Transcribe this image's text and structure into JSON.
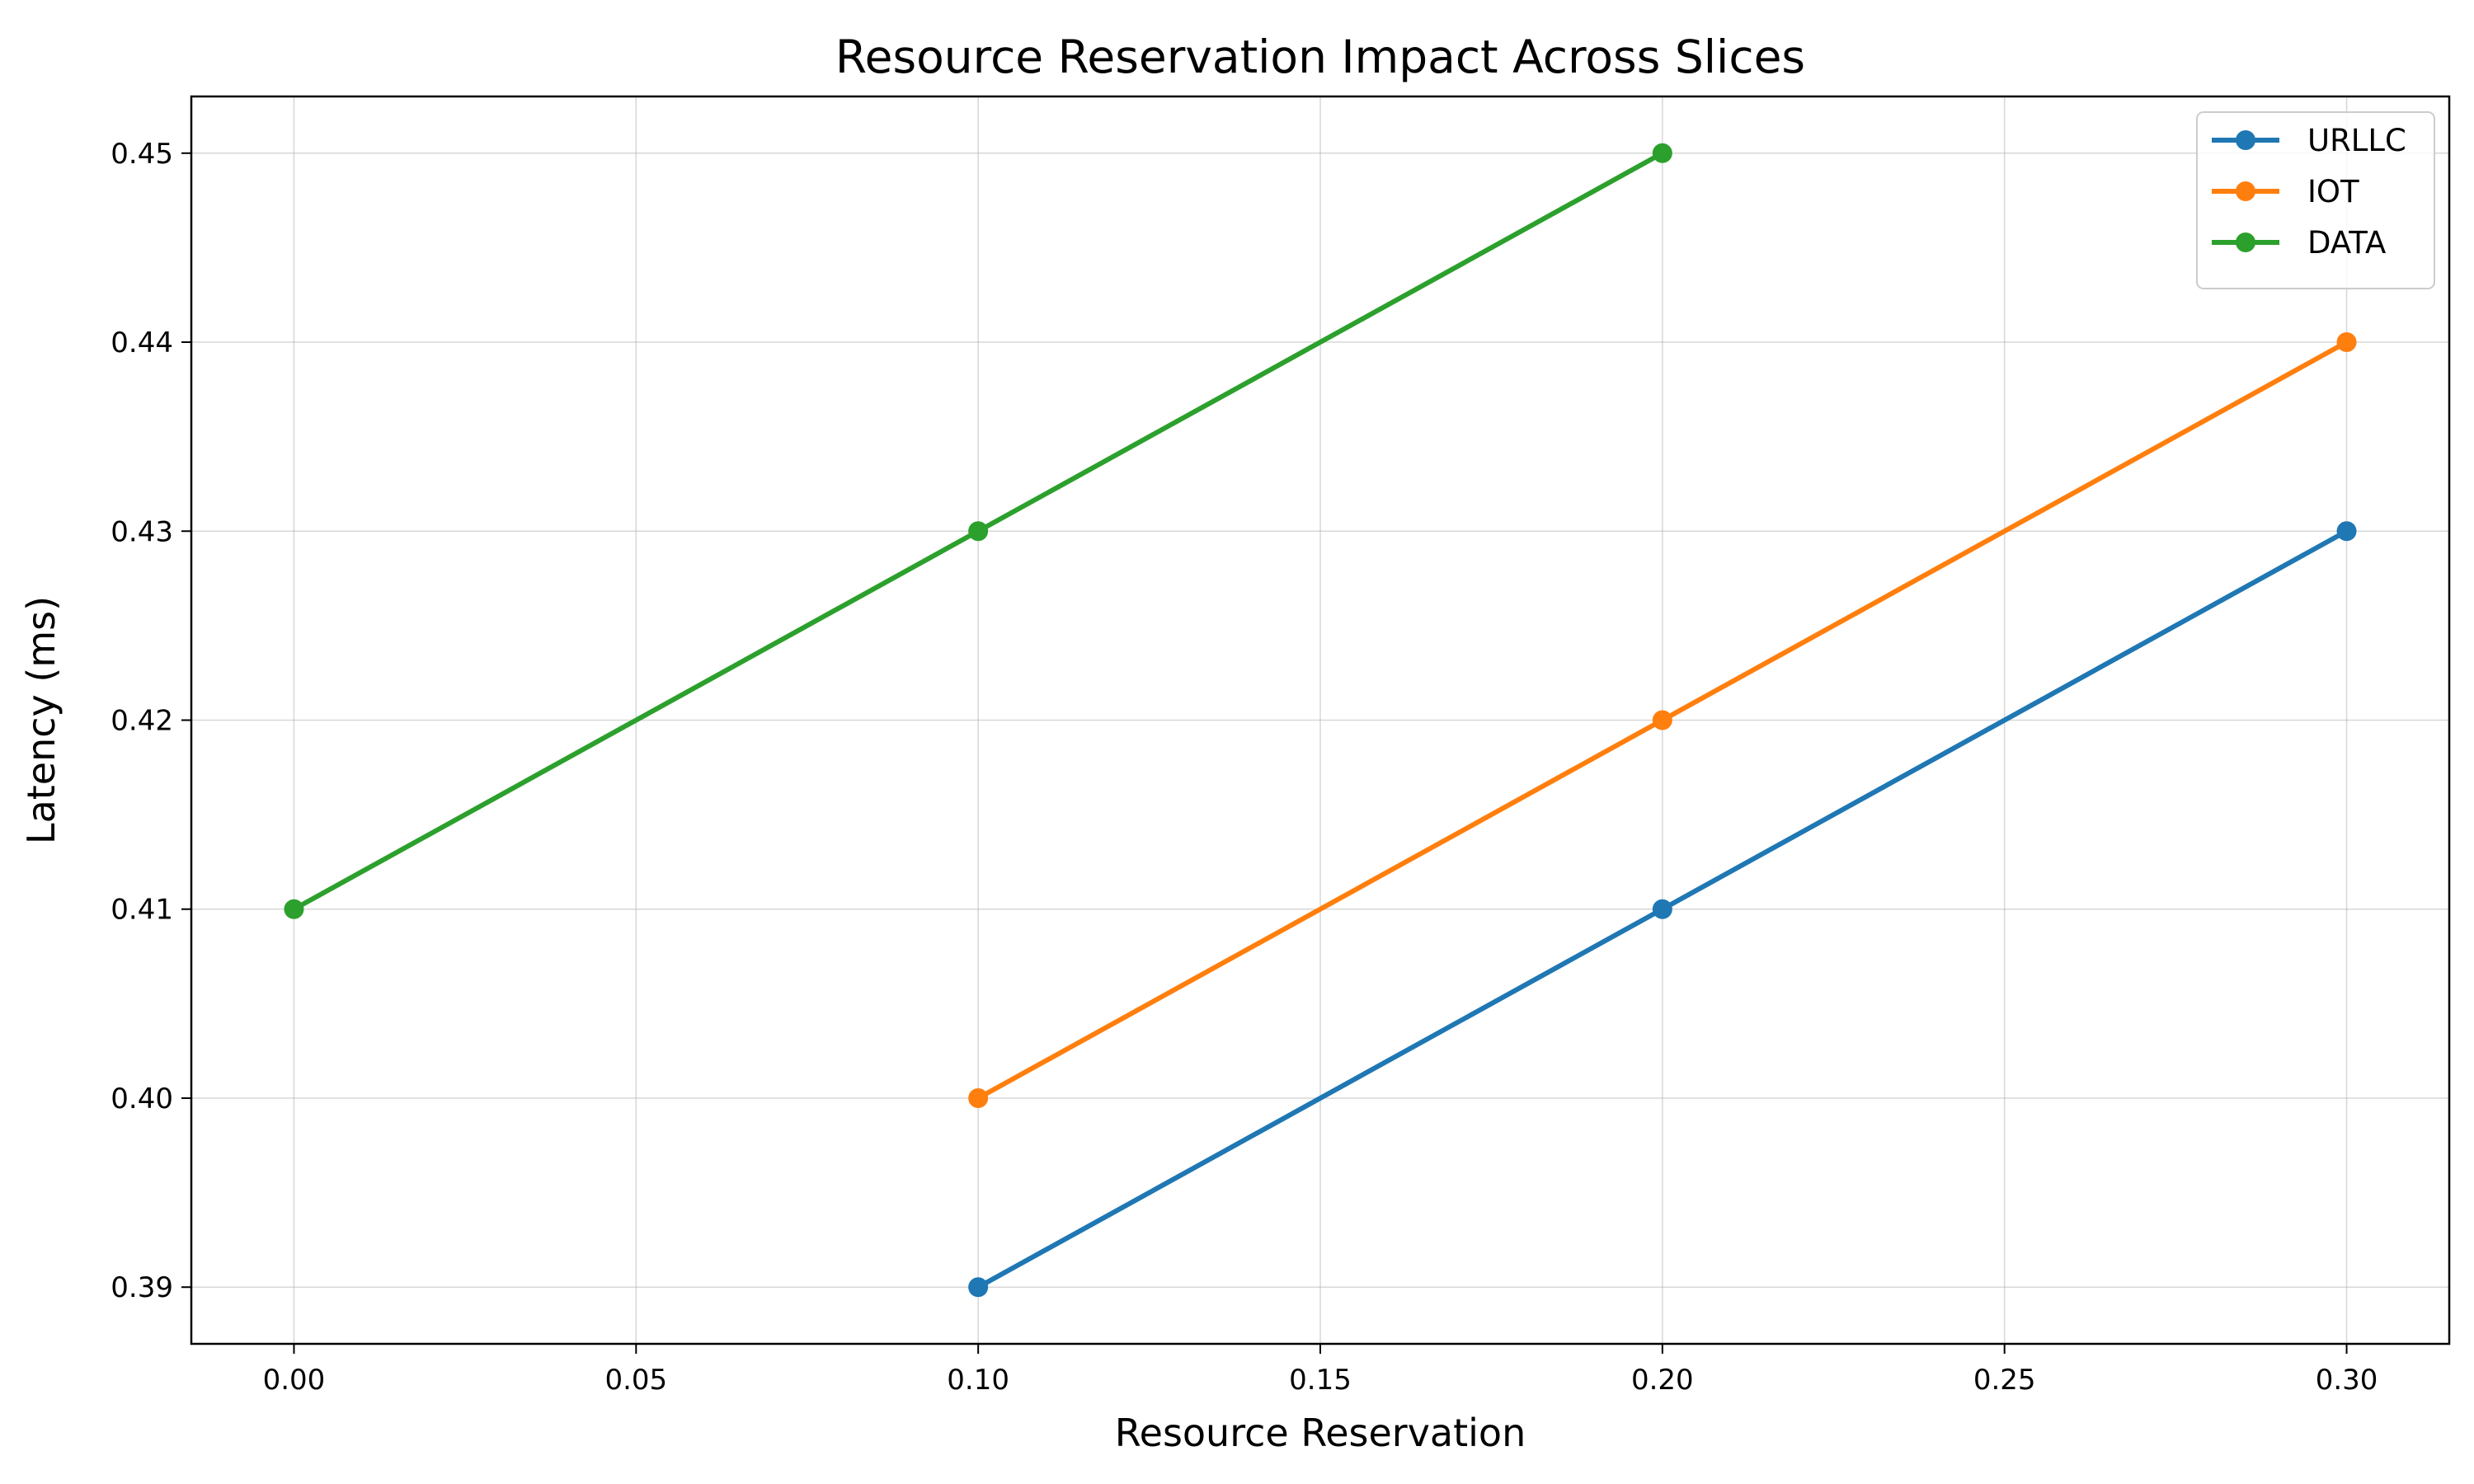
{
  "chart_data": {
    "type": "line",
    "title": "Resource Reservation Impact Across Slices",
    "xlabel": "Resource Reservation",
    "ylabel": "Latency (ms)",
    "xlim": [
      -0.015,
      0.315
    ],
    "ylim": [
      0.387,
      0.453
    ],
    "x_ticks": [
      0.0,
      0.05,
      0.1,
      0.15,
      0.2,
      0.25,
      0.3
    ],
    "x_tick_labels": [
      "0.00",
      "0.05",
      "0.10",
      "0.15",
      "0.20",
      "0.25",
      "0.30"
    ],
    "y_ticks": [
      0.39,
      0.4,
      0.41,
      0.42,
      0.43,
      0.44,
      0.45
    ],
    "y_tick_labels": [
      "0.39",
      "0.40",
      "0.41",
      "0.42",
      "0.43",
      "0.44",
      "0.45"
    ],
    "grid": true,
    "legend_position": "top-right",
    "series": [
      {
        "name": "URLLC",
        "color": "#1f77b4",
        "x": [
          0.1,
          0.2,
          0.3
        ],
        "y": [
          0.39,
          0.41,
          0.43
        ]
      },
      {
        "name": "IOT",
        "color": "#ff7f0e",
        "x": [
          0.1,
          0.2,
          0.3
        ],
        "y": [
          0.4,
          0.42,
          0.44
        ]
      },
      {
        "name": "DATA",
        "color": "#2ca02c",
        "x": [
          0.0,
          0.1,
          0.2
        ],
        "y": [
          0.41,
          0.43,
          0.45
        ]
      }
    ]
  }
}
